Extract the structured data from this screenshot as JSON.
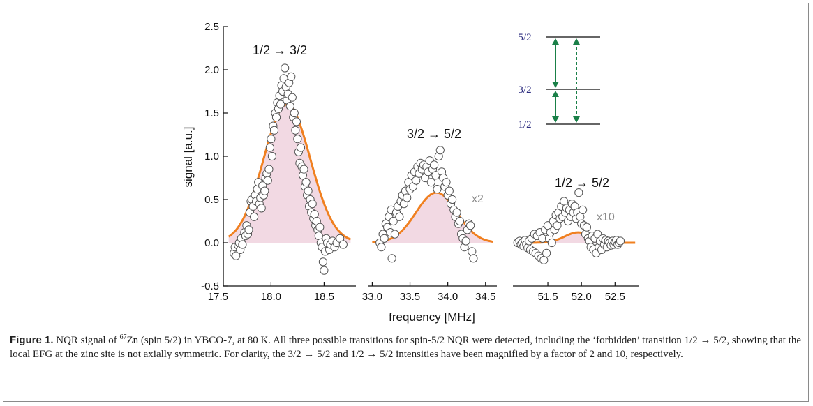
{
  "chart_data": {
    "type": "scatter",
    "ylabel": "signal [a.u.]",
    "xlabel": "frequency [MHz]",
    "ylim": [
      -0.5,
      2.5
    ],
    "yticks": [
      "2.5",
      "2.0",
      "1.5",
      "1.0",
      "0.5",
      "0.0",
      "-0.5"
    ],
    "colors": {
      "data_marker_edge": "#555555",
      "fit_line": "#f08020",
      "fill": "#f2d9e3",
      "level_line": "#333333",
      "arrow": "#1a8048",
      "level_label": "#2a2a7e",
      "factor_label": "#8a8a8a"
    },
    "panels": [
      {
        "transition_label": "1/2 → 3/2",
        "xlim": [
          17.55,
          18.8
        ],
        "xticks": [
          "17.5",
          "18.0",
          "18.5"
        ],
        "xtick_values": [
          17.5,
          18.0,
          18.5
        ],
        "fit": {
          "center": 18.15,
          "amplitude": 1.6,
          "width": 0.22,
          "baseline_from": 17.6,
          "baseline_to": 18.75
        },
        "points": [
          [
            17.65,
            -0.12
          ],
          [
            17.66,
            -0.05
          ],
          [
            17.67,
            -0.15
          ],
          [
            17.69,
            -0.03
          ],
          [
            17.7,
            0.0
          ],
          [
            17.71,
            -0.08
          ],
          [
            17.72,
            0.05
          ],
          [
            17.73,
            -0.02
          ],
          [
            17.75,
            0.12
          ],
          [
            17.76,
            0.08
          ],
          [
            17.77,
            0.2
          ],
          [
            17.78,
            0.1
          ],
          [
            17.79,
            0.15
          ],
          [
            17.8,
            0.35
          ],
          [
            17.81,
            0.48
          ],
          [
            17.82,
            0.5
          ],
          [
            17.83,
            0.42
          ],
          [
            17.84,
            0.3
          ],
          [
            17.85,
            0.55
          ],
          [
            17.86,
            0.48
          ],
          [
            17.87,
            0.62
          ],
          [
            17.88,
            0.7
          ],
          [
            17.89,
            0.45
          ],
          [
            17.9,
            0.52
          ],
          [
            17.91,
            0.4
          ],
          [
            17.92,
            0.66
          ],
          [
            17.93,
            0.55
          ],
          [
            17.94,
            0.6
          ],
          [
            17.95,
            0.75
          ],
          [
            17.96,
            0.8
          ],
          [
            17.97,
            0.72
          ],
          [
            17.98,
            0.85
          ],
          [
            17.99,
            1.1
          ],
          [
            18.0,
            1.2
          ],
          [
            18.01,
            1.0
          ],
          [
            18.02,
            1.35
          ],
          [
            18.03,
            1.3
          ],
          [
            18.04,
            1.5
          ],
          [
            18.05,
            1.45
          ],
          [
            18.06,
            1.62
          ],
          [
            18.07,
            1.55
          ],
          [
            18.08,
            1.7
          ],
          [
            18.09,
            1.6
          ],
          [
            18.1,
            1.82
          ],
          [
            18.11,
            1.75
          ],
          [
            18.12,
            1.9
          ],
          [
            18.13,
            2.02
          ],
          [
            18.14,
            1.8
          ],
          [
            18.15,
            1.65
          ],
          [
            18.16,
            1.72
          ],
          [
            18.17,
            1.85
          ],
          [
            18.18,
            1.58
          ],
          [
            18.19,
            1.92
          ],
          [
            18.2,
            1.68
          ],
          [
            18.21,
            1.45
          ],
          [
            18.22,
            1.5
          ],
          [
            18.23,
            1.3
          ],
          [
            18.24,
            1.4
          ],
          [
            18.25,
            1.2
          ],
          [
            18.26,
            1.05
          ],
          [
            18.27,
            0.92
          ],
          [
            18.28,
            1.1
          ],
          [
            18.29,
            0.88
          ],
          [
            18.3,
            0.78
          ],
          [
            18.31,
            0.85
          ],
          [
            18.32,
            0.65
          ],
          [
            18.33,
            0.7
          ],
          [
            18.34,
            0.55
          ],
          [
            18.35,
            0.6
          ],
          [
            18.36,
            0.42
          ],
          [
            18.37,
            0.5
          ],
          [
            18.38,
            0.35
          ],
          [
            18.39,
            0.45
          ],
          [
            18.4,
            0.28
          ],
          [
            18.41,
            0.33
          ],
          [
            18.42,
            0.2
          ],
          [
            18.43,
            0.25
          ],
          [
            18.44,
            0.15
          ],
          [
            18.45,
            0.08
          ],
          [
            18.46,
            0.18
          ],
          [
            18.47,
            0.0
          ],
          [
            18.48,
            -0.05
          ],
          [
            18.49,
            -0.22
          ],
          [
            18.5,
            -0.32
          ],
          [
            18.51,
            -0.1
          ],
          [
            18.52,
            0.05
          ],
          [
            18.53,
            0.0
          ],
          [
            18.55,
            -0.08
          ],
          [
            18.56,
            -0.02
          ],
          [
            18.58,
            0.02
          ],
          [
            18.6,
            -0.05
          ],
          [
            18.62,
            0.0
          ],
          [
            18.65,
            0.05
          ],
          [
            18.68,
            -0.02
          ]
        ]
      },
      {
        "transition_label": "3/2 → 5/2",
        "factor_label": "x2",
        "xlim": [
          32.95,
          34.65
        ],
        "xticks": [
          "33.0",
          "33.5",
          "34.0",
          "34.5"
        ],
        "xtick_values": [
          33.0,
          33.5,
          34.0,
          34.5
        ],
        "fit": {
          "center": 33.85,
          "amplitude": 0.58,
          "width": 0.27,
          "baseline_from": 33.0,
          "baseline_to": 34.6
        },
        "points": [
          [
            33.1,
            0.0
          ],
          [
            33.12,
            -0.05
          ],
          [
            33.14,
            0.1
          ],
          [
            33.16,
            0.05
          ],
          [
            33.18,
            0.22
          ],
          [
            33.2,
            0.18
          ],
          [
            33.22,
            0.3
          ],
          [
            33.24,
            0.12
          ],
          [
            33.25,
            0.38
          ],
          [
            33.26,
            -0.18
          ],
          [
            33.28,
            0.25
          ],
          [
            33.3,
            0.1
          ],
          [
            33.32,
            0.35
          ],
          [
            33.34,
            0.42
          ],
          [
            33.36,
            0.3
          ],
          [
            33.38,
            0.48
          ],
          [
            33.4,
            0.55
          ],
          [
            33.42,
            0.45
          ],
          [
            33.44,
            0.6
          ],
          [
            33.46,
            0.52
          ],
          [
            33.48,
            0.7
          ],
          [
            33.5,
            0.62
          ],
          [
            33.52,
            0.78
          ],
          [
            33.54,
            0.65
          ],
          [
            33.56,
            0.82
          ],
          [
            33.58,
            0.72
          ],
          [
            33.6,
            0.88
          ],
          [
            33.62,
            0.8
          ],
          [
            33.64,
            0.92
          ],
          [
            33.66,
            0.85
          ],
          [
            33.68,
            0.9
          ],
          [
            33.7,
            0.75
          ],
          [
            33.72,
            0.88
          ],
          [
            33.74,
            0.82
          ],
          [
            33.76,
            0.95
          ],
          [
            33.78,
            0.7
          ],
          [
            33.8,
            0.85
          ],
          [
            33.82,
            0.9
          ],
          [
            33.84,
            0.78
          ],
          [
            33.86,
            0.62
          ],
          [
            33.88,
            1.0
          ],
          [
            33.9,
            1.07
          ],
          [
            33.92,
            0.82
          ],
          [
            33.94,
            0.75
          ],
          [
            33.96,
            0.65
          ],
          [
            33.98,
            0.7
          ],
          [
            34.0,
            0.55
          ],
          [
            34.02,
            0.6
          ],
          [
            34.04,
            0.45
          ],
          [
            34.06,
            0.5
          ],
          [
            34.08,
            0.38
          ],
          [
            34.1,
            0.3
          ],
          [
            34.12,
            0.35
          ],
          [
            34.14,
            0.22
          ],
          [
            34.16,
            0.25
          ],
          [
            34.18,
            0.1
          ],
          [
            34.2,
            0.05
          ],
          [
            34.22,
            -0.05
          ],
          [
            34.24,
            0.02
          ],
          [
            34.26,
            0.15
          ],
          [
            34.28,
            0.22
          ],
          [
            34.3,
            0.2
          ],
          [
            34.32,
            -0.1
          ],
          [
            34.34,
            -0.18
          ]
        ]
      },
      {
        "transition_label": "1/2 → 5/2",
        "factor_label": "x10",
        "xlim": [
          50.98,
          52.85
        ],
        "xticks": [
          "51.5",
          "52.0",
          "52.5"
        ],
        "xtick_values": [
          51.5,
          52.0,
          52.5
        ],
        "fit": {
          "center": 51.95,
          "amplitude": 0.12,
          "width": 0.2,
          "baseline_from": 51.0,
          "baseline_to": 52.8
        },
        "points": [
          [
            51.05,
            0.0
          ],
          [
            51.08,
            0.02
          ],
          [
            51.1,
            -0.02
          ],
          [
            51.12,
            0.0
          ],
          [
            51.14,
            -0.04
          ],
          [
            51.16,
            0.03
          ],
          [
            51.18,
            -0.02
          ],
          [
            51.2,
            -0.06
          ],
          [
            51.22,
            0.02
          ],
          [
            51.24,
            -0.08
          ],
          [
            51.26,
            0.05
          ],
          [
            51.28,
            -0.1
          ],
          [
            51.3,
            0.1
          ],
          [
            51.32,
            -0.12
          ],
          [
            51.34,
            0.08
          ],
          [
            51.36,
            -0.15
          ],
          [
            51.38,
            0.12
          ],
          [
            51.4,
            -0.18
          ],
          [
            51.42,
            0.05
          ],
          [
            51.44,
            -0.2
          ],
          [
            51.46,
            0.15
          ],
          [
            51.48,
            -0.12
          ],
          [
            51.5,
            0.2
          ],
          [
            51.52,
            0.05
          ],
          [
            51.54,
            0.12
          ],
          [
            51.56,
            0.0
          ],
          [
            51.58,
            0.25
          ],
          [
            51.6,
            0.15
          ],
          [
            51.62,
            0.32
          ],
          [
            51.64,
            0.2
          ],
          [
            51.66,
            0.35
          ],
          [
            51.68,
            0.28
          ],
          [
            51.7,
            0.42
          ],
          [
            51.72,
            0.3
          ],
          [
            51.74,
            0.48
          ],
          [
            51.76,
            0.35
          ],
          [
            51.78,
            0.4
          ],
          [
            51.8,
            0.25
          ],
          [
            51.82,
            0.38
          ],
          [
            51.84,
            0.3
          ],
          [
            51.86,
            0.45
          ],
          [
            51.88,
            0.35
          ],
          [
            51.9,
            0.42
          ],
          [
            51.92,
            0.28
          ],
          [
            51.94,
            0.35
          ],
          [
            51.96,
            0.58
          ],
          [
            51.98,
            0.3
          ],
          [
            52.0,
            0.22
          ],
          [
            52.02,
            0.38
          ],
          [
            52.04,
            0.2
          ],
          [
            52.06,
            0.1
          ],
          [
            52.08,
            0.18
          ],
          [
            52.1,
            0.05
          ],
          [
            52.12,
            0.02
          ],
          [
            52.14,
            -0.05
          ],
          [
            52.16,
            0.08
          ],
          [
            52.18,
            -0.08
          ],
          [
            52.2,
            0.05
          ],
          [
            52.22,
            -0.12
          ],
          [
            52.24,
            0.1
          ],
          [
            52.26,
            -0.05
          ],
          [
            52.28,
            0.02
          ],
          [
            52.3,
            -0.08
          ],
          [
            52.32,
            0.05
          ],
          [
            52.34,
            -0.02
          ],
          [
            52.36,
            0.03
          ],
          [
            52.38,
            -0.05
          ],
          [
            52.4,
            0.02
          ],
          [
            52.42,
            0.0
          ],
          [
            52.44,
            -0.03
          ],
          [
            52.46,
            0.02
          ],
          [
            52.48,
            -0.02
          ],
          [
            52.5,
            0.01
          ],
          [
            52.52,
            0.03
          ],
          [
            52.54,
            -0.02
          ],
          [
            52.56,
            0.0
          ],
          [
            52.58,
            0.02
          ]
        ]
      }
    ],
    "inset": {
      "levels": [
        "5/2",
        "3/2",
        "1/2"
      ],
      "arrows": [
        "1/2 ↔ 3/2 (solid)",
        "3/2 ↔ 5/2 (solid)",
        "1/2 ↔ 5/2 (dashed)"
      ]
    }
  },
  "caption": {
    "label": "Figure 1.",
    "text_before_sup": " NQR signal of ",
    "isotope_mass": "67",
    "text_after_sup": "Zn (spin 5/2) in YBCO-7, at 80 K. All three possible transitions for spin-5/2 NQR were detected, including the ‘forbidden’ transition 1/2 → 5/2, showing that the local EFG at the zinc site is not axially symmetric. For clarity, the 3/2 → 5/2 and 1/2 → 5/2 intensities have been magnified by a factor of 2 and 10, respectively."
  }
}
